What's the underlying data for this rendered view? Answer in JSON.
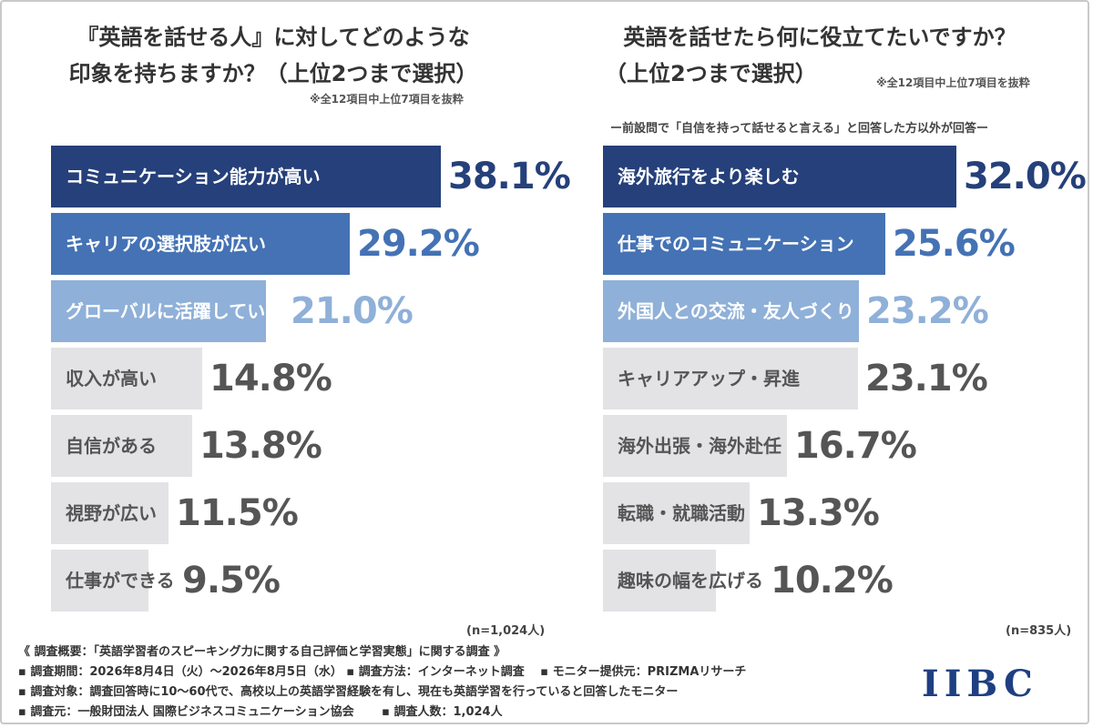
{
  "left": {
    "title_line1": "『英語を話せる人』に対してどのような",
    "title_line2": "印象を持ちますか？（上位2つまで選択）",
    "note": "※全12項目中上位7項目を抜粋",
    "n_label": "(n=1,024人)"
  },
  "right": {
    "title_line1": "英語を話せたら何に役立てたいですか？",
    "title_line2": "（上位2つまで選択）",
    "note": "※全12項目中上位7項目を抜粋",
    "subnote": "ー前設問で「自信を持って話せると言える」と回答した方以外が回答ー",
    "n_label": "(n=835人)"
  },
  "chart_data": [
    {
      "type": "bar",
      "orientation": "horizontal",
      "title": "『英語を話せる人』に対してどのような印象を持ちますか？（上位2つまで選択）",
      "categories": [
        "コミュニケーション能力が高い",
        "キャリアの選択肢が広い",
        "グローバルに活躍している",
        "収入が高い",
        "自信がある",
        "視野が広い",
        "仕事ができる"
      ],
      "values": [
        38.1,
        29.2,
        21.0,
        14.8,
        13.8,
        11.5,
        9.5
      ],
      "value_labels": [
        "38.1%",
        "29.2%",
        "21.0%",
        "14.8%",
        "13.8%",
        "11.5%",
        "9.5%"
      ],
      "xlim": [
        0,
        40
      ],
      "bar_colors": [
        "#25407a",
        "#4472b4",
        "#8fb0d8",
        "#e3e3e6",
        "#e3e3e6",
        "#e3e3e6",
        "#e3e3e6"
      ],
      "label_colors": [
        "#ffffff",
        "#ffffff",
        "#ffffff",
        "#555555",
        "#555555",
        "#555555",
        "#555555"
      ],
      "value_colors": [
        "#25407a",
        "#4472b4",
        "#8fb0d8",
        "#555555",
        "#555555",
        "#555555",
        "#555555"
      ]
    },
    {
      "type": "bar",
      "orientation": "horizontal",
      "title": "英語を話せたら何に役立てたいですか？（上位2つまで選択）",
      "categories": [
        "海外旅行をより楽しむ",
        "仕事でのコミュニケーション",
        "外国人との交流・友人づくり",
        "キャリアアップ・昇進",
        "海外出張・海外赴任",
        "転職・就職活動",
        "趣味の幅を広げる"
      ],
      "values": [
        32.0,
        25.6,
        23.2,
        23.1,
        16.7,
        13.3,
        10.2
      ],
      "value_labels": [
        "32.0%",
        "25.6%",
        "23.2%",
        "23.1%",
        "16.7%",
        "13.3%",
        "10.2%"
      ],
      "xlim": [
        0,
        32
      ],
      "bar_colors": [
        "#25407a",
        "#4472b4",
        "#8fb0d8",
        "#e3e3e6",
        "#e3e3e6",
        "#e3e3e6",
        "#e3e3e6"
      ],
      "label_colors": [
        "#ffffff",
        "#ffffff",
        "#ffffff",
        "#555555",
        "#555555",
        "#555555",
        "#555555"
      ],
      "value_colors": [
        "#25407a",
        "#4472b4",
        "#8fb0d8",
        "#555555",
        "#555555",
        "#555555",
        "#555555"
      ]
    }
  ],
  "footer": {
    "line1": "《 調査概要：「英語学習者のスピーキング力に関する自己評価と学習実態」に関する調査 》",
    "line2": "▪ 調査期間：2026年8月4日（火）〜2026年8月5日（水） ▪ 調査方法：インターネット調査 　▪ モニター提供元：PRIZMAリサーチ",
    "line3": "▪ 調査対象：調査回答時に10〜60代で、高校以上の英語学習経験を有し、現在も英語学習を行っていると回答したモニター",
    "line4": "▪ 調査元：一般財団法人 国際ビジネスコミュニケーション協会 　　▪ 調査人数：1,024人"
  },
  "logo": {
    "text": "IIBC"
  }
}
